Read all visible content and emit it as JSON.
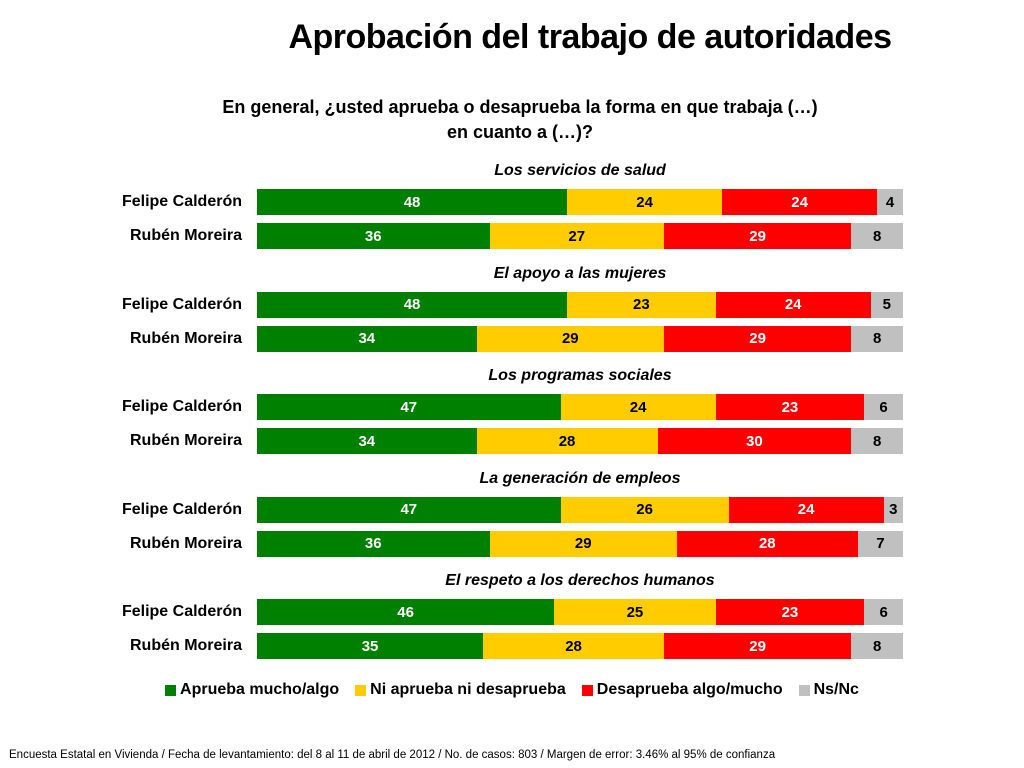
{
  "header": {
    "title": "Aprobación del trabajo de autoridades",
    "question_line1": "En general, ¿usted aprueba o desaprueba la forma en que trabaja (…)",
    "question_line2": "en cuanto a (…)?"
  },
  "footnote": "Encuesta Estatal en Vivienda / Fecha de levantamiento: del  8 al 11 de abril de 2012 / No. de casos: 803 / Margen de error: 3.46% al 95% de confianza",
  "colors": {
    "aprueba": "#008000",
    "ni": "#ffcc00",
    "desaprueba": "#ff0000",
    "nsnc": "#c0c0c0"
  },
  "chart_data": {
    "type": "bar",
    "orientation": "horizontal",
    "stacked": true,
    "legend_position": "bottom",
    "series_names": [
      "Aprueba mucho/algo",
      "Ni aprueba ni desaprueba",
      "Desaprueba algo/mucho",
      "Ns/Nc"
    ],
    "groups": [
      {
        "title": "Los servicios de salud",
        "rows": [
          {
            "label": "Felipe Calderón",
            "values": [
              48,
              24,
              24,
              4
            ]
          },
          {
            "label": "Rubén Moreira",
            "values": [
              36,
              27,
              29,
              8
            ]
          }
        ]
      },
      {
        "title": "El apoyo a las mujeres",
        "rows": [
          {
            "label": "Felipe Calderón",
            "values": [
              48,
              23,
              24,
              5
            ]
          },
          {
            "label": "Rubén Moreira",
            "values": [
              34,
              29,
              29,
              8
            ]
          }
        ]
      },
      {
        "title": "Los programas sociales",
        "rows": [
          {
            "label": "Felipe Calderón",
            "values": [
              47,
              24,
              23,
              6
            ]
          },
          {
            "label": "Rubén Moreira",
            "values": [
              34,
              28,
              30,
              8
            ]
          }
        ]
      },
      {
        "title": "La generación de empleos",
        "rows": [
          {
            "label": "Felipe Calderón",
            "values": [
              47,
              26,
              24,
              3
            ]
          },
          {
            "label": "Rubén Moreira",
            "values": [
              36,
              29,
              28,
              7
            ]
          }
        ]
      },
      {
        "title": "El respeto a los derechos humanos",
        "rows": [
          {
            "label": "Felipe Calderón",
            "values": [
              46,
              25,
              23,
              6
            ]
          },
          {
            "label": "Rubén Moreira",
            "values": [
              35,
              28,
              29,
              8
            ]
          }
        ]
      }
    ]
  }
}
